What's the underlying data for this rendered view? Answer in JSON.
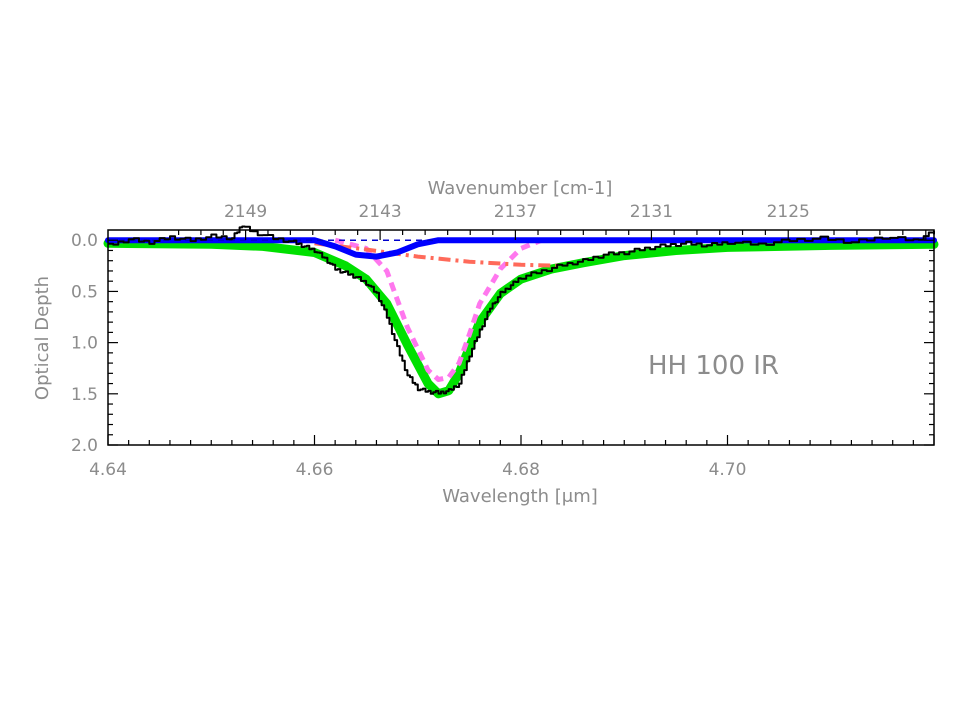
{
  "chart_data": {
    "type": "line",
    "annotation": "HH 100 IR",
    "xlabel": "Wavelength [μm]",
    "x2label": "Wavenumber [cm-1]",
    "ylabel": "Optical Depth",
    "xlim": [
      4.64,
      4.72
    ],
    "ylim": [
      2.0,
      -0.1
    ],
    "x_ticks": [
      {
        "value": 4.64,
        "label": "4.64"
      },
      {
        "value": 4.66,
        "label": "4.66"
      },
      {
        "value": 4.68,
        "label": "4.68"
      },
      {
        "value": 4.7,
        "label": "4.70"
      }
    ],
    "x2_ticks": [
      {
        "value": 2149,
        "label": "2149"
      },
      {
        "value": 2143,
        "label": "2143"
      },
      {
        "value": 2137,
        "label": "2137"
      },
      {
        "value": 2131,
        "label": "2131"
      },
      {
        "value": 2125,
        "label": "2125"
      }
    ],
    "y_ticks": [
      {
        "value": 0.0,
        "label": "0.0"
      },
      {
        "value": 0.5,
        "label": "0.5"
      },
      {
        "value": 1.0,
        "label": "1.0"
      },
      {
        "value": 1.5,
        "label": "1.5"
      },
      {
        "value": 2.0,
        "label": "2.0"
      }
    ],
    "series": [
      {
        "style": "green-thick",
        "color": "#00e000",
        "x": [
          4.64,
          4.65,
          4.655,
          4.66,
          4.663,
          4.665,
          4.667,
          4.669,
          4.671,
          4.672,
          4.673,
          4.674,
          4.675,
          4.676,
          4.678,
          4.68,
          4.683,
          4.686,
          4.69,
          4.695,
          4.7,
          4.71,
          4.72
        ],
        "y": [
          0.03,
          0.04,
          0.06,
          0.12,
          0.25,
          0.38,
          0.62,
          1.02,
          1.4,
          1.5,
          1.47,
          1.3,
          1.05,
          0.8,
          0.52,
          0.38,
          0.28,
          0.22,
          0.15,
          0.1,
          0.07,
          0.05,
          0.04
        ]
      },
      {
        "style": "magenta-dashed",
        "color": "#ff77ee",
        "x": [
          4.662,
          4.665,
          4.667,
          4.669,
          4.671,
          4.672,
          4.673,
          4.674,
          4.675,
          4.676,
          4.678,
          4.68,
          4.682
        ],
        "y": [
          0.0,
          0.08,
          0.3,
          0.85,
          1.27,
          1.36,
          1.34,
          1.2,
          0.92,
          0.62,
          0.28,
          0.08,
          0.0
        ]
      },
      {
        "style": "salmon-dashdot",
        "color": "#ff6a5a",
        "x": [
          4.66,
          4.665,
          4.67,
          4.675,
          4.68,
          4.684
        ],
        "y": [
          0.03,
          0.09,
          0.16,
          0.21,
          0.24,
          0.25
        ]
      },
      {
        "style": "blue-thick",
        "color": "#0000ff",
        "x": [
          4.64,
          4.66,
          4.662,
          4.664,
          4.666,
          4.668,
          4.67,
          4.672,
          4.68,
          4.72
        ],
        "y": [
          0.0,
          0.0,
          0.06,
          0.14,
          0.16,
          0.12,
          0.04,
          0.0,
          0.0,
          0.0
        ]
      },
      {
        "style": "blue-dashed-zero",
        "color": "#0000cc",
        "x": [
          4.64,
          4.672
        ],
        "y": [
          0.0,
          0.0
        ]
      },
      {
        "style": "black-observed",
        "color": "#000000",
        "x": [
          4.64,
          4.642,
          4.644,
          4.646,
          4.648,
          4.65,
          4.652,
          4.653,
          4.654,
          4.656,
          4.658,
          4.659,
          4.66,
          4.661,
          4.662,
          4.663,
          4.664,
          4.665,
          4.666,
          4.667,
          4.668,
          4.669,
          4.67,
          4.671,
          4.672,
          4.673,
          4.674,
          4.675,
          4.676,
          4.677,
          4.678,
          4.679,
          4.68,
          4.682,
          4.684,
          4.686,
          4.688,
          4.69,
          4.692,
          4.694,
          4.696,
          4.698,
          4.7,
          4.703,
          4.706,
          4.709,
          4.712,
          4.715,
          4.718,
          4.72
        ],
        "y": [
          0.05,
          -0.01,
          0.02,
          -0.03,
          0.0,
          -0.04,
          -0.02,
          -0.15,
          -0.08,
          -0.02,
          0.02,
          0.06,
          0.1,
          0.18,
          0.28,
          0.32,
          0.36,
          0.42,
          0.52,
          0.75,
          1.05,
          1.32,
          1.45,
          1.48,
          1.49,
          1.47,
          1.4,
          1.12,
          0.88,
          0.66,
          0.52,
          0.44,
          0.36,
          0.3,
          0.24,
          0.2,
          0.14,
          0.12,
          0.08,
          0.05,
          0.03,
          0.05,
          0.02,
          0.04,
          0.0,
          -0.02,
          0.02,
          -0.03,
          0.0,
          -0.08
        ]
      }
    ]
  }
}
